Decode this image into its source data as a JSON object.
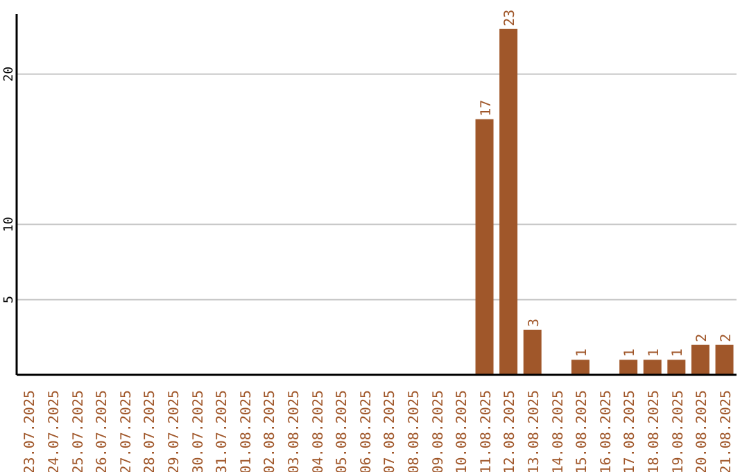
{
  "chart_data": {
    "type": "bar",
    "categories": [
      "23.07.2025",
      "24.07.2025",
      "25.07.2025",
      "26.07.2025",
      "27.07.2025",
      "28.07.2025",
      "29.07.2025",
      "30.07.2025",
      "31.07.2025",
      "01.08.2025",
      "02.08.2025",
      "03.08.2025",
      "04.08.2025",
      "05.08.2025",
      "06.08.2025",
      "07.08.2025",
      "08.08.2025",
      "09.08.2025",
      "10.08.2025",
      "11.08.2025",
      "12.08.2025",
      "13.08.2025",
      "14.08.2025",
      "15.08.2025",
      "16.08.2025",
      "17.08.2025",
      "18.08.2025",
      "19.08.2025",
      "20.08.2025",
      "21.08.2025"
    ],
    "values": [
      0,
      0,
      0,
      0,
      0,
      0,
      0,
      0,
      0,
      0,
      0,
      0,
      0,
      0,
      0,
      0,
      0,
      0,
      0,
      17,
      23,
      3,
      0,
      1,
      0,
      1,
      1,
      1,
      2,
      2
    ],
    "value_labels": [
      null,
      null,
      null,
      null,
      null,
      null,
      null,
      null,
      null,
      null,
      null,
      null,
      null,
      null,
      null,
      null,
      null,
      null,
      null,
      "17",
      "23",
      "3",
      null,
      "1",
      null,
      "1",
      "1",
      "1",
      "2",
      "2"
    ],
    "color": "#a0572a",
    "ylim": [
      0,
      24
    ],
    "yticks": [
      5,
      10,
      20
    ],
    "grid": "y"
  }
}
